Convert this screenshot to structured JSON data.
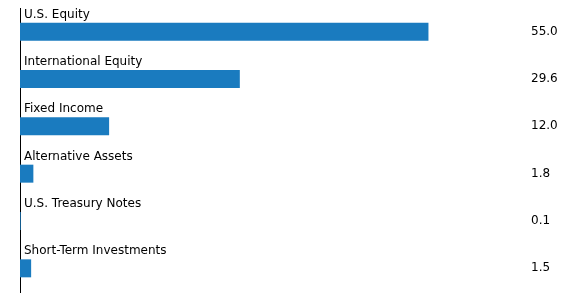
{
  "chart_data": {
    "type": "bar",
    "orientation": "horizontal",
    "categories": [
      "U.S. Equity",
      "International Equity",
      "Fixed Income",
      "Alternative Assets",
      "U.S. Treasury Notes",
      "Short-Term Investments"
    ],
    "values": [
      55.0,
      29.6,
      12.0,
      1.8,
      0.1,
      1.5
    ],
    "value_labels": [
      "55.0",
      "29.6",
      "12.0",
      "1.8",
      "0.1",
      "1.5"
    ],
    "color": "#1a7bbf",
    "xlim": [
      0,
      68
    ],
    "data_labels": true,
    "tick_labels": false,
    "grid": false
  }
}
